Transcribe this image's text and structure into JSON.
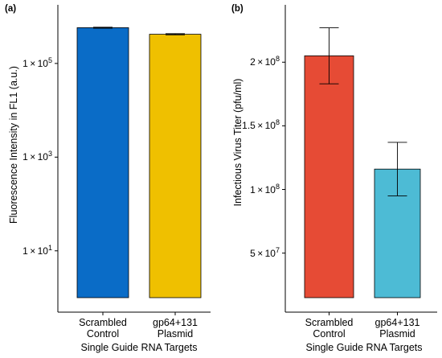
{
  "chart_data": [
    {
      "panel": "(a)",
      "type": "bar",
      "categories": [
        [
          "Scrambled",
          "Control"
        ],
        [
          "gp64+131",
          "Plasmid"
        ]
      ],
      "values": [
        580000,
        420000
      ],
      "errors": [
        15000,
        12000
      ],
      "colors": [
        "#0a6cc7",
        "#efc000"
      ],
      "xlabel": "Single Guide RNA Targets",
      "ylabel": "Fluorescence Intensity in FL1 (a.u.)",
      "yscale": "log",
      "ylim": [
        1,
        1300000
      ],
      "yticks": [
        {
          "mant": "1",
          "exp": "5",
          "value": 100000
        },
        {
          "mant": "1",
          "exp": "3",
          "value": 1000
        },
        {
          "mant": "1",
          "exp": "1",
          "value": 10
        }
      ],
      "grid": false
    },
    {
      "panel": "(b)",
      "type": "bar",
      "categories": [
        [
          "Scrambled",
          "Control"
        ],
        [
          "gp64+131",
          "Plasmid"
        ]
      ],
      "values": [
        205000000,
        116000000
      ],
      "errors": [
        22000000,
        21000000
      ],
      "colors": [
        "#e64b35",
        "#4dbbd5"
      ],
      "xlabel": "Single Guide RNA Targets",
      "ylabel": "Infectious Virus Titer (pfu/ml)",
      "yscale": "linear",
      "ylim": [
        15000000,
        240000000
      ],
      "yticks": [
        {
          "mant": "2",
          "exp": "8",
          "value": 200000000
        },
        {
          "mant": "1.5",
          "exp": "8",
          "value": 150000000
        },
        {
          "mant": "1",
          "exp": "8",
          "value": 100000000
        },
        {
          "mant": "5",
          "exp": "7",
          "value": 50000000
        }
      ],
      "grid": false
    }
  ]
}
